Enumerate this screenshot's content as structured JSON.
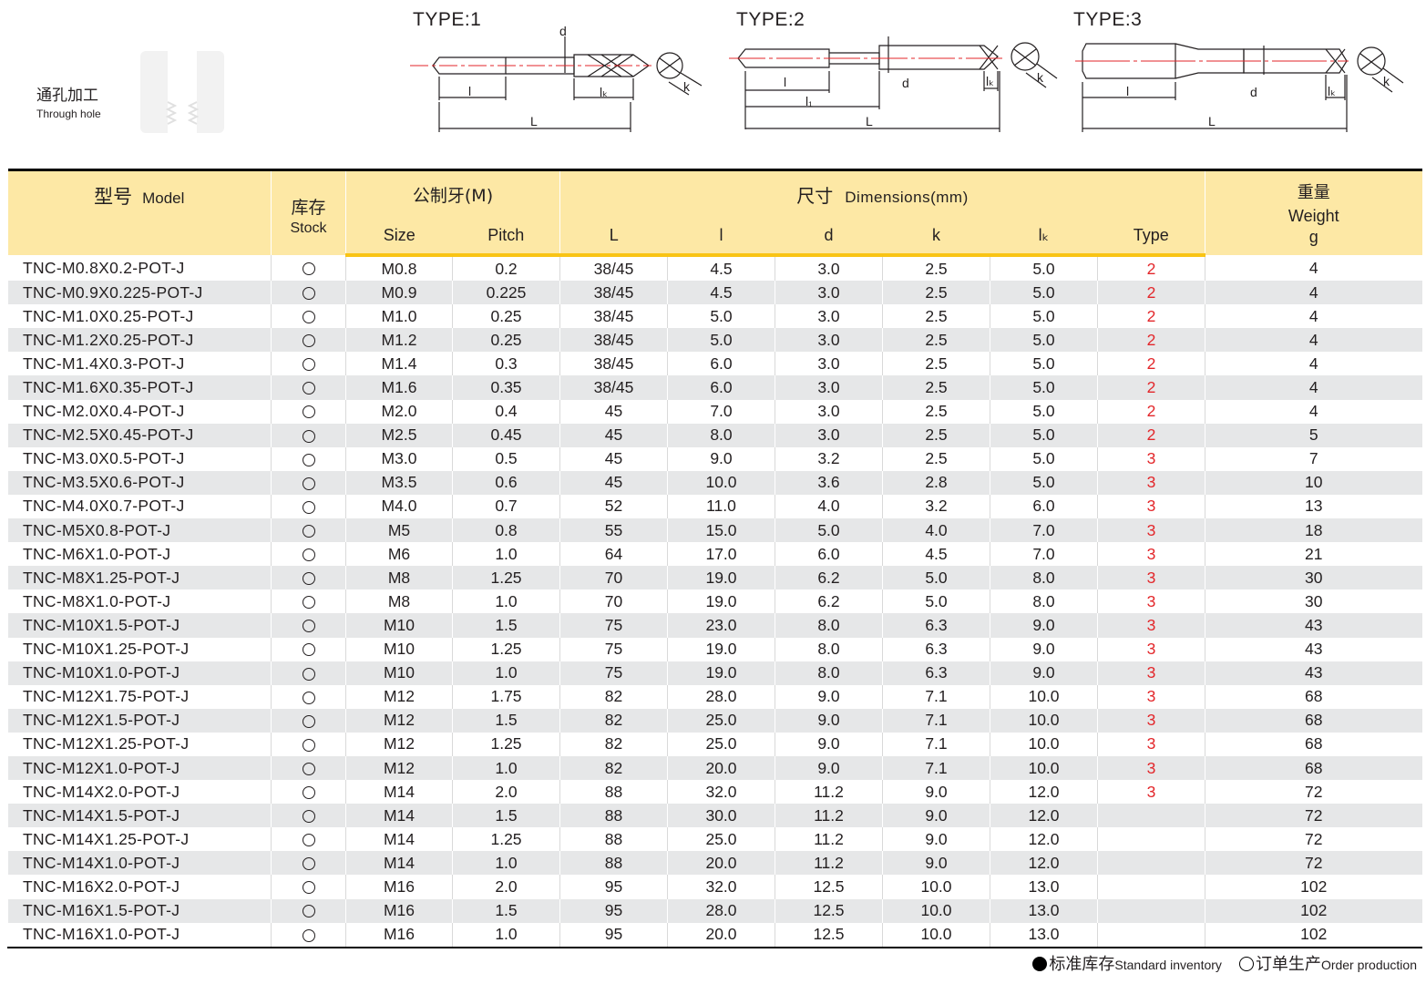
{
  "hole": {
    "cn": "通孔加工",
    "en": "Through hole"
  },
  "types": [
    "TYPE:1",
    "TYPE:2",
    "TYPE:3"
  ],
  "dims": {
    "d": "d",
    "l": "l",
    "lk": "lₖ",
    "L": "L",
    "k": "k",
    "l1": "l₁"
  },
  "header": {
    "model_cn": "型号",
    "model_en": "Model",
    "stock_cn": "库存",
    "stock_en": "Stock",
    "thread": "公制牙(M)",
    "dims_cn": "尺寸",
    "dims_en": "Dimensions(mm)",
    "weight_cn": "重量",
    "weight_en": "Weight",
    "weight_unit": "g",
    "size": "Size",
    "pitch": "Pitch",
    "L": "L",
    "l": "l",
    "d": "d",
    "k": "k",
    "lk": "lₖ",
    "type": "Type"
  },
  "rows": [
    {
      "model": "TNC-M0.8X0.2-POT-J",
      "stock": "O",
      "size": "M0.8",
      "pitch": "0.2",
      "L": "38/45",
      "l": "4.5",
      "d": "3.0",
      "k": "2.5",
      "lk": "5.0",
      "type": "2",
      "weight": "4"
    },
    {
      "model": "TNC-M0.9X0.225-POT-J",
      "stock": "O",
      "size": "M0.9",
      "pitch": "0.225",
      "L": "38/45",
      "l": "4.5",
      "d": "3.0",
      "k": "2.5",
      "lk": "5.0",
      "type": "2",
      "weight": "4"
    },
    {
      "model": "TNC-M1.0X0.25-POT-J",
      "stock": "O",
      "size": "M1.0",
      "pitch": "0.25",
      "L": "38/45",
      "l": "5.0",
      "d": "3.0",
      "k": "2.5",
      "lk": "5.0",
      "type": "2",
      "weight": "4"
    },
    {
      "model": "TNC-M1.2X0.25-POT-J",
      "stock": "O",
      "size": "M1.2",
      "pitch": "0.25",
      "L": "38/45",
      "l": "5.0",
      "d": "3.0",
      "k": "2.5",
      "lk": "5.0",
      "type": "2",
      "weight": "4"
    },
    {
      "model": "TNC-M1.4X0.3-POT-J",
      "stock": "O",
      "size": "M1.4",
      "pitch": "0.3",
      "L": "38/45",
      "l": "6.0",
      "d": "3.0",
      "k": "2.5",
      "lk": "5.0",
      "type": "2",
      "weight": "4"
    },
    {
      "model": "TNC-M1.6X0.35-POT-J",
      "stock": "O",
      "size": "M1.6",
      "pitch": "0.35",
      "L": "38/45",
      "l": "6.0",
      "d": "3.0",
      "k": "2.5",
      "lk": "5.0",
      "type": "2",
      "weight": "4"
    },
    {
      "model": "TNC-M2.0X0.4-POT-J",
      "stock": "O",
      "size": "M2.0",
      "pitch": "0.4",
      "L": "45",
      "l": "7.0",
      "d": "3.0",
      "k": "2.5",
      "lk": "5.0",
      "type": "2",
      "weight": "4"
    },
    {
      "model": "TNC-M2.5X0.45-POT-J",
      "stock": "O",
      "size": "M2.5",
      "pitch": "0.45",
      "L": "45",
      "l": "8.0",
      "d": "3.0",
      "k": "2.5",
      "lk": "5.0",
      "type": "2",
      "weight": "5"
    },
    {
      "model": "TNC-M3.0X0.5-POT-J",
      "stock": "O",
      "size": "M3.0",
      "pitch": "0.5",
      "L": "45",
      "l": "9.0",
      "d": "3.2",
      "k": "2.5",
      "lk": "5.0",
      "type": "3",
      "weight": "7"
    },
    {
      "model": "TNC-M3.5X0.6-POT-J",
      "stock": "O",
      "size": "M3.5",
      "pitch": "0.6",
      "L": "45",
      "l": "10.0",
      "d": "3.6",
      "k": "2.8",
      "lk": "5.0",
      "type": "3",
      "weight": "10"
    },
    {
      "model": "TNC-M4.0X0.7-POT-J",
      "stock": "O",
      "size": "M4.0",
      "pitch": "0.7",
      "L": "52",
      "l": "11.0",
      "d": "4.0",
      "k": "3.2",
      "lk": "6.0",
      "type": "3",
      "weight": "13"
    },
    {
      "model": "TNC-M5X0.8-POT-J",
      "stock": "O",
      "size": "M5",
      "pitch": "0.8",
      "L": "55",
      "l": "15.0",
      "d": "5.0",
      "k": "4.0",
      "lk": "7.0",
      "type": "3",
      "weight": "18"
    },
    {
      "model": "TNC-M6X1.0-POT-J",
      "stock": "O",
      "size": "M6",
      "pitch": "1.0",
      "L": "64",
      "l": "17.0",
      "d": "6.0",
      "k": "4.5",
      "lk": "7.0",
      "type": "3",
      "weight": "21"
    },
    {
      "model": "TNC-M8X1.25-POT-J",
      "stock": "O",
      "size": "M8",
      "pitch": "1.25",
      "L": "70",
      "l": "19.0",
      "d": "6.2",
      "k": "5.0",
      "lk": "8.0",
      "type": "3",
      "weight": "30"
    },
    {
      "model": "TNC-M8X1.0-POT-J",
      "stock": "O",
      "size": "M8",
      "pitch": "1.0",
      "L": "70",
      "l": "19.0",
      "d": "6.2",
      "k": "5.0",
      "lk": "8.0",
      "type": "3",
      "weight": "30"
    },
    {
      "model": "TNC-M10X1.5-POT-J",
      "stock": "O",
      "size": "M10",
      "pitch": "1.5",
      "L": "75",
      "l": "23.0",
      "d": "8.0",
      "k": "6.3",
      "lk": "9.0",
      "type": "3",
      "weight": "43"
    },
    {
      "model": "TNC-M10X1.25-POT-J",
      "stock": "O",
      "size": "M10",
      "pitch": "1.25",
      "L": "75",
      "l": "19.0",
      "d": "8.0",
      "k": "6.3",
      "lk": "9.0",
      "type": "3",
      "weight": "43"
    },
    {
      "model": "TNC-M10X1.0-POT-J",
      "stock": "O",
      "size": "M10",
      "pitch": "1.0",
      "L": "75",
      "l": "19.0",
      "d": "8.0",
      "k": "6.3",
      "lk": "9.0",
      "type": "3",
      "weight": "43"
    },
    {
      "model": "TNC-M12X1.75-POT-J",
      "stock": "O",
      "size": "M12",
      "pitch": "1.75",
      "L": "82",
      "l": "28.0",
      "d": "9.0",
      "k": "7.1",
      "lk": "10.0",
      "type": "3",
      "weight": "68"
    },
    {
      "model": "TNC-M12X1.5-POT-J",
      "stock": "O",
      "size": "M12",
      "pitch": "1.5",
      "L": "82",
      "l": "25.0",
      "d": "9.0",
      "k": "7.1",
      "lk": "10.0",
      "type": "3",
      "weight": "68"
    },
    {
      "model": "TNC-M12X1.25-POT-J",
      "stock": "O",
      "size": "M12",
      "pitch": "1.25",
      "L": "82",
      "l": "25.0",
      "d": "9.0",
      "k": "7.1",
      "lk": "10.0",
      "type": "3",
      "weight": "68"
    },
    {
      "model": "TNC-M12X1.0-POT-J",
      "stock": "O",
      "size": "M12",
      "pitch": "1.0",
      "L": "82",
      "l": "20.0",
      "d": "9.0",
      "k": "7.1",
      "lk": "10.0",
      "type": "3",
      "weight": "68"
    },
    {
      "model": "TNC-M14X2.0-POT-J",
      "stock": "O",
      "size": "M14",
      "pitch": "2.0",
      "L": "88",
      "l": "32.0",
      "d": "11.2",
      "k": "9.0",
      "lk": "12.0",
      "type": "3",
      "weight": "72"
    },
    {
      "model": "TNC-M14X1.5-POT-J",
      "stock": "O",
      "size": "M14",
      "pitch": "1.5",
      "L": "88",
      "l": "30.0",
      "d": "11.2",
      "k": "9.0",
      "lk": "12.0",
      "type": "",
      "weight": "72"
    },
    {
      "model": "TNC-M14X1.25-POT-J",
      "stock": "O",
      "size": "M14",
      "pitch": "1.25",
      "L": "88",
      "l": "25.0",
      "d": "11.2",
      "k": "9.0",
      "lk": "12.0",
      "type": "",
      "weight": "72"
    },
    {
      "model": "TNC-M14X1.0-POT-J",
      "stock": "O",
      "size": "M14",
      "pitch": "1.0",
      "L": "88",
      "l": "20.0",
      "d": "11.2",
      "k": "9.0",
      "lk": "12.0",
      "type": "",
      "weight": "72"
    },
    {
      "model": "TNC-M16X2.0-POT-J",
      "stock": "O",
      "size": "M16",
      "pitch": "2.0",
      "L": "95",
      "l": "32.0",
      "d": "12.5",
      "k": "10.0",
      "lk": "13.0",
      "type": "",
      "weight": "102"
    },
    {
      "model": "TNC-M16X1.5-POT-J",
      "stock": "O",
      "size": "M16",
      "pitch": "1.5",
      "L": "95",
      "l": "28.0",
      "d": "12.5",
      "k": "10.0",
      "lk": "13.0",
      "type": "",
      "weight": "102"
    },
    {
      "model": "TNC-M16X1.0-POT-J",
      "stock": "O",
      "size": "M16",
      "pitch": "1.0",
      "L": "95",
      "l": "20.0",
      "d": "12.5",
      "k": "10.0",
      "lk": "13.0",
      "type": "",
      "weight": "102"
    }
  ],
  "legend": {
    "std_cn": "标准库存",
    "std_en": "Standard inventory",
    "order_cn": "订单生产",
    "order_en": "Order production"
  },
  "colors": {
    "header_bg": "#fde8a5",
    "header_rule": "#f9c415",
    "type_red": "#e3262a",
    "stripe": "#e6e7e8"
  }
}
